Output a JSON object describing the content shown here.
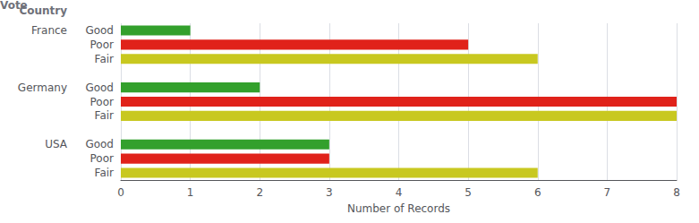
{
  "chart_data": {
    "type": "bar",
    "orientation": "horizontal",
    "xlabel": "Number of Records",
    "group_header": "Country",
    "category_header": "Vote",
    "groups": [
      {
        "name": "France",
        "categories": [
          "Good",
          "Poor",
          "Fair"
        ],
        "values": [
          1,
          5,
          6
        ],
        "colors": [
          "#33a02c",
          "#e0221a",
          "#c8c820"
        ]
      },
      {
        "name": "Germany",
        "categories": [
          "Good",
          "Poor",
          "Fair"
        ],
        "values": [
          2,
          8,
          8
        ],
        "colors": [
          "#33a02c",
          "#e0221a",
          "#c8c820"
        ]
      },
      {
        "name": "USA",
        "categories": [
          "Good",
          "Poor",
          "Fair"
        ],
        "values": [
          3,
          3,
          6
        ],
        "colors": [
          "#33a02c",
          "#e0221a",
          "#c8c820"
        ]
      }
    ],
    "xlim": [
      0,
      8
    ],
    "xticks": [
      0,
      1,
      2,
      3,
      4,
      5,
      6,
      7,
      8
    ],
    "grid": true
  }
}
